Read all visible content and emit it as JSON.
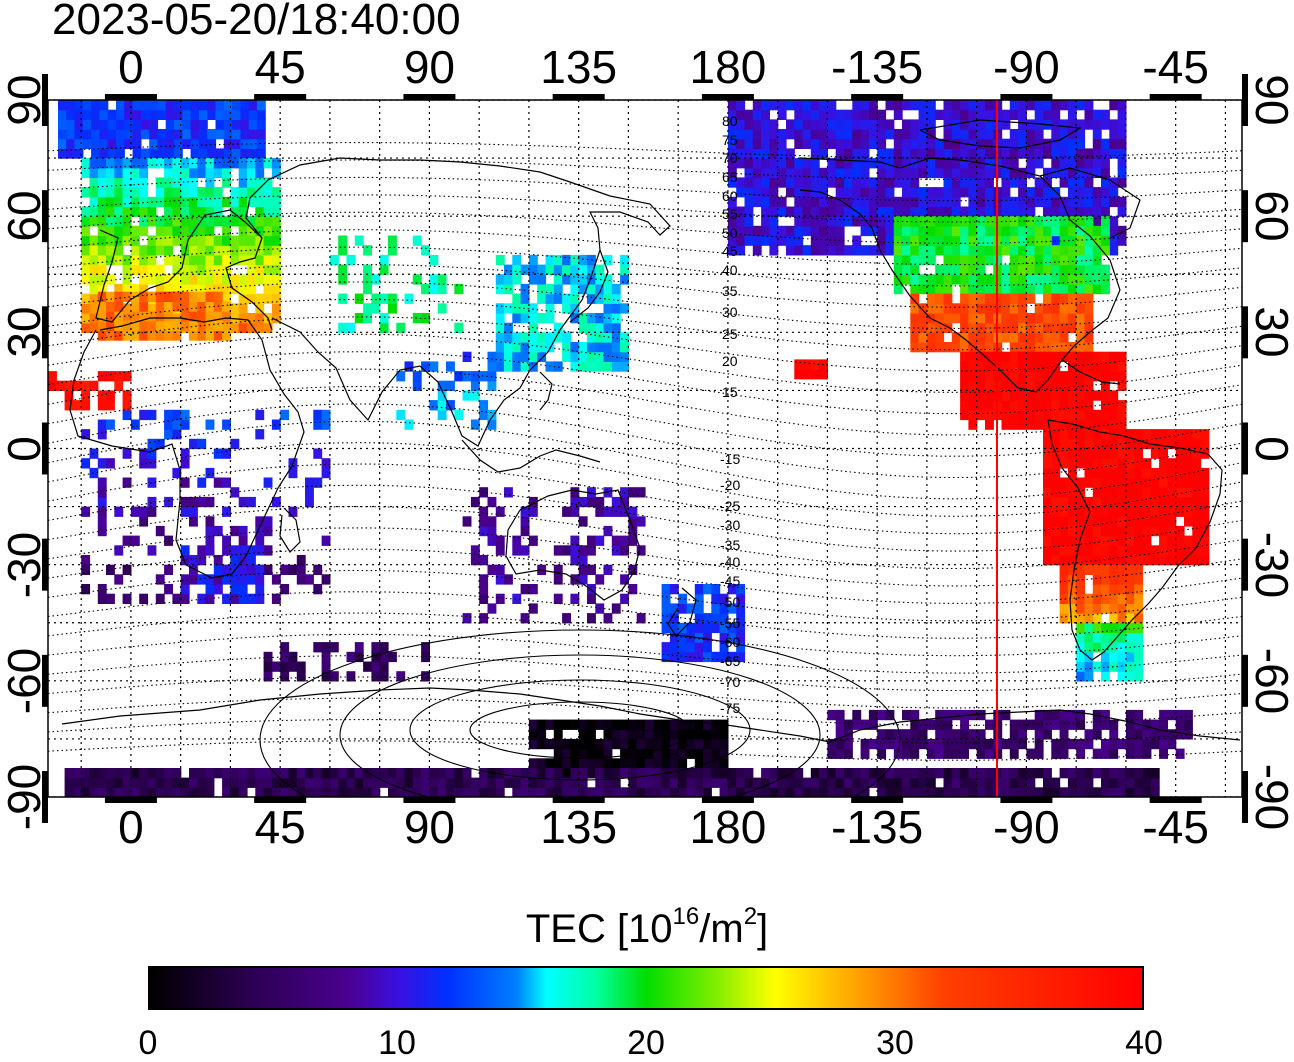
{
  "timestamp": "2023-05-20/18:40:00",
  "axes": {
    "lon_ticks": [
      "0",
      "45",
      "90",
      "135",
      "180",
      "-135",
      "-90",
      "-45"
    ],
    "lat_ticks_left": [
      "90",
      "60",
      "30",
      "0",
      "-30",
      "-60",
      "-90"
    ],
    "lat_ticks_right": [
      "90",
      "60",
      "30",
      "0",
      "-30",
      "-60",
      "-90"
    ]
  },
  "contour_labels_north": [
    "80",
    "75",
    "70",
    "65",
    "60",
    "55",
    "50",
    "45",
    "40",
    "35",
    "30",
    "25",
    "20",
    "15"
  ],
  "contour_labels_south": [
    "-15",
    "-20",
    "-25",
    "-30",
    "-35",
    "-40",
    "-45",
    "-50",
    "-55",
    "-60",
    "-65",
    "-70",
    "-75"
  ],
  "terminator_longitude": "-100",
  "colorbar": {
    "title_prefix": "TEC  [10",
    "title_exp1": "16",
    "title_mid": "/m",
    "title_exp2": "2",
    "title_suffix": "]",
    "labels": [
      "0",
      "10",
      "20",
      "30",
      "40"
    ],
    "min": 0,
    "max": 40,
    "colors": [
      "#000000",
      "#4b0090",
      "#0030ff",
      "#00ffff",
      "#00dd00",
      "#ffff00",
      "#ff4000",
      "#ff0000"
    ]
  }
}
